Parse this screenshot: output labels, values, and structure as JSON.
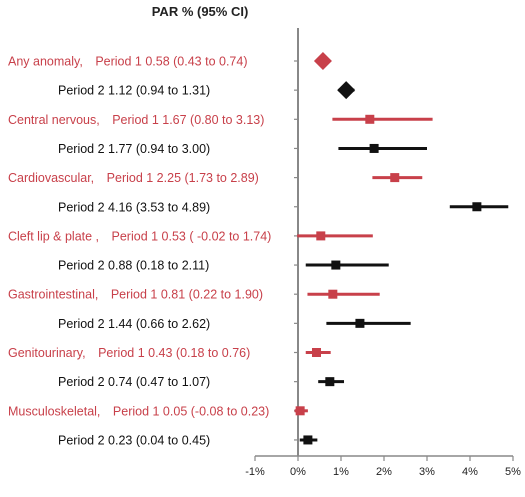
{
  "chart_data": {
    "type": "forest",
    "title": "PAR % (95% CI)",
    "xlabel": "",
    "xlim": [
      -1,
      5
    ],
    "x_ticks": [
      "-1%",
      "0%",
      "1%",
      "2%",
      "3%",
      "4%",
      "5%"
    ],
    "x_tick_values": [
      -1,
      0,
      1,
      2,
      3,
      4,
      5
    ],
    "colors": {
      "period1": "#c8404a",
      "period2": "#111111",
      "axis": "#888888"
    },
    "groups": [
      {
        "name": "Any anomaly,",
        "marker": "diamond",
        "rows": [
          {
            "label": "Period 1",
            "value_text": "0.58 (0.43 to 0.74)",
            "est": 0.58,
            "lo": 0.43,
            "hi": 0.74
          },
          {
            "label": "Period 2",
            "value_text": "1.12 (0.94 to 1.31)",
            "est": 1.12,
            "lo": 0.94,
            "hi": 1.31
          }
        ]
      },
      {
        "name": "Central nervous,",
        "marker": "square",
        "rows": [
          {
            "label": "Period 1",
            "value_text": "1.67 (0.80 to 3.13)",
            "est": 1.67,
            "lo": 0.8,
            "hi": 3.13
          },
          {
            "label": "Period 2",
            "value_text": "1.77 (0.94 to 3.00)",
            "est": 1.77,
            "lo": 0.94,
            "hi": 3.0
          }
        ]
      },
      {
        "name": "Cardiovascular,",
        "marker": "square",
        "rows": [
          {
            "label": "Period 1",
            "value_text": "2.25 (1.73 to 2.89)",
            "est": 2.25,
            "lo": 1.73,
            "hi": 2.89
          },
          {
            "label": "Period 2",
            "value_text": "4.16 (3.53 to 4.89)",
            "est": 4.16,
            "lo": 3.53,
            "hi": 4.89
          }
        ]
      },
      {
        "name": "Cleft lip & plate ,",
        "marker": "square",
        "rows": [
          {
            "label": "Period 1",
            "value_text": "0.53 ( -0.02 to 1.74)",
            "est": 0.53,
            "lo": -0.02,
            "hi": 1.74
          },
          {
            "label": "Period 2",
            "value_text": "0.88 (0.18 to 2.11)",
            "est": 0.88,
            "lo": 0.18,
            "hi": 2.11
          }
        ]
      },
      {
        "name": "Gastrointestinal,",
        "marker": "square",
        "rows": [
          {
            "label": "Period 1",
            "value_text": "0.81 (0.22 to 1.90)",
            "est": 0.81,
            "lo": 0.22,
            "hi": 1.9
          },
          {
            "label": "Period 2",
            "value_text": "1.44 (0.66 to 2.62)",
            "est": 1.44,
            "lo": 0.66,
            "hi": 2.62
          }
        ]
      },
      {
        "name": "Genitourinary,",
        "marker": "square",
        "rows": [
          {
            "label": "Period 1",
            "value_text": "0.43 (0.18 to 0.76)",
            "est": 0.43,
            "lo": 0.18,
            "hi": 0.76
          },
          {
            "label": "Period 2",
            "value_text": "0.74 (0.47 to 1.07)",
            "est": 0.74,
            "lo": 0.47,
            "hi": 1.07
          }
        ]
      },
      {
        "name": "Musculoskeletal,",
        "marker": "square",
        "rows": [
          {
            "label": "Period 1",
            "value_text": "0.05 (-0.08 to 0.23)",
            "est": 0.05,
            "lo": -0.08,
            "hi": 0.23
          },
          {
            "label": "Period 2",
            "value_text": "0.23 (0.04 to 0.45)",
            "est": 0.23,
            "lo": 0.04,
            "hi": 0.45
          }
        ]
      }
    ]
  }
}
